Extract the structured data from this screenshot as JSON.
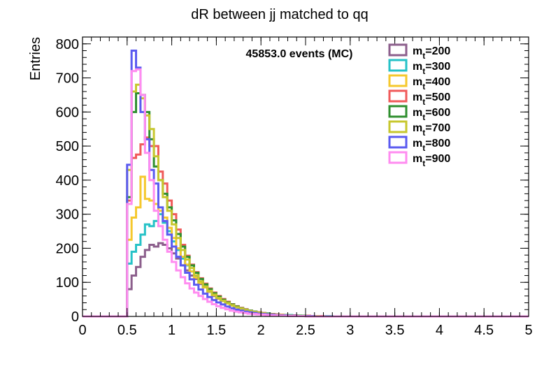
{
  "chart_data": {
    "type": "line",
    "title": "dR between jj matched to qq",
    "annotation": "45853.0 events (MC)",
    "xlabel": "",
    "ylabel": "Entries",
    "xlim": [
      0,
      5
    ],
    "ylim": [
      0,
      820
    ],
    "x_ticks": [
      "0",
      "0.5",
      "1",
      "1.5",
      "2",
      "2.5",
      "3",
      "3.5",
      "4",
      "4.5",
      "5"
    ],
    "y_ticks": [
      "0",
      "100",
      "200",
      "300",
      "400",
      "500",
      "600",
      "700",
      "800"
    ],
    "bin_width": 0.05,
    "x": [
      0.5,
      0.55,
      0.6,
      0.65,
      0.7,
      0.75,
      0.8,
      0.85,
      0.9,
      0.95,
      1.0,
      1.05,
      1.1,
      1.15,
      1.2,
      1.25,
      1.3,
      1.35,
      1.4,
      1.45,
      1.5,
      1.55,
      1.6,
      1.65,
      1.7,
      1.75,
      1.8,
      1.85,
      1.9,
      1.95,
      2.0,
      2.05,
      2.1,
      2.15,
      2.2,
      2.25,
      2.3,
      2.35,
      2.4,
      2.45,
      2.5,
      2.55,
      2.6,
      2.65,
      2.7,
      2.75,
      2.8,
      2.85,
      2.9,
      2.95
    ],
    "legend_position": "top-right",
    "series": [
      {
        "name": "200",
        "color": "#8c5f8c",
        "values": [
          80,
          120,
          145,
          175,
          195,
          210,
          205,
          215,
          210,
          200,
          185,
          170,
          150,
          135,
          120,
          110,
          95,
          85,
          72,
          60,
          52,
          45,
          38,
          32,
          27,
          23,
          19,
          16,
          13,
          11,
          9,
          8,
          7,
          6,
          5,
          4,
          3,
          3,
          2,
          2,
          2,
          1,
          1,
          1,
          1,
          0,
          0,
          0,
          0,
          0
        ]
      },
      {
        "name": "300",
        "color": "#26c2c7",
        "values": [
          155,
          190,
          210,
          240,
          270,
          265,
          280,
          300,
          275,
          250,
          220,
          195,
          170,
          150,
          132,
          115,
          100,
          87,
          75,
          64,
          55,
          47,
          40,
          34,
          29,
          24,
          20,
          17,
          14,
          12,
          10,
          9,
          7,
          6,
          5,
          4,
          4,
          3,
          3,
          2,
          2,
          1,
          1,
          1,
          1,
          1,
          0,
          0,
          0,
          0
        ]
      },
      {
        "name": "400",
        "color": "#f5c82d",
        "values": [
          225,
          290,
          320,
          410,
          345,
          340,
          330,
          310,
          290,
          260,
          230,
          200,
          175,
          152,
          132,
          114,
          98,
          85,
          73,
          62,
          53,
          45,
          38,
          32,
          27,
          23,
          19,
          16,
          13,
          11,
          9,
          8,
          7,
          6,
          5,
          4,
          3,
          3,
          2,
          2,
          2,
          1,
          1,
          1,
          0,
          0,
          0,
          0,
          0,
          0
        ]
      },
      {
        "name": "500",
        "color": "#f05a5a",
        "values": [
          340,
          465,
          475,
          505,
          525,
          500,
          500,
          425,
          390,
          340,
          300,
          255,
          210,
          178,
          152,
          130,
          112,
          96,
          82,
          70,
          60,
          51,
          43,
          36,
          30,
          25,
          21,
          17,
          14,
          12,
          10,
          8,
          7,
          6,
          5,
          4,
          3,
          3,
          2,
          2,
          2,
          1,
          1,
          1,
          0,
          0,
          0,
          0,
          0,
          0
        ]
      },
      {
        "name": "600",
        "color": "#2f8f2f",
        "values": [
          350,
          600,
          655,
          650,
          600,
          520,
          440,
          400,
          360,
          320,
          282,
          242,
          205,
          175,
          150,
          128,
          110,
          94,
          80,
          68,
          58,
          49,
          41,
          35,
          29,
          24,
          20,
          17,
          14,
          11,
          9,
          8,
          6,
          5,
          4,
          4,
          3,
          2,
          2,
          2,
          1,
          1,
          1,
          0,
          0,
          0,
          0,
          0,
          0,
          0
        ]
      },
      {
        "name": "700",
        "color": "#c7c72e",
        "values": [
          430,
          660,
          680,
          640,
          590,
          550,
          470,
          400,
          350,
          310,
          270,
          230,
          195,
          167,
          142,
          121,
          103,
          88,
          75,
          64,
          54,
          46,
          39,
          33,
          27,
          23,
          19,
          16,
          13,
          11,
          9,
          7,
          6,
          5,
          4,
          3,
          3,
          2,
          2,
          1,
          1,
          1,
          1,
          0,
          0,
          0,
          0,
          0,
          0,
          0
        ]
      },
      {
        "name": "800",
        "color": "#5a5af0",
        "values": [
          445,
          780,
          730,
          600,
          520,
          430,
          390,
          320,
          280,
          240,
          205,
          175,
          150,
          128,
          109,
          93,
          79,
          67,
          57,
          48,
          41,
          35,
          29,
          24,
          20,
          17,
          14,
          12,
          10,
          8,
          7,
          6,
          5,
          4,
          3,
          3,
          2,
          2,
          1,
          1,
          1,
          1,
          0,
          0,
          0,
          0,
          0,
          0,
          0,
          0
        ]
      },
      {
        "name": "900",
        "color": "#ff8cf0",
        "values": [
          330,
          720,
          725,
          650,
          480,
          400,
          310,
          265,
          225,
          190,
          160,
          135,
          115,
          97,
          82,
          70,
          60,
          51,
          43,
          36,
          30,
          25,
          21,
          17,
          14,
          12,
          10,
          8,
          7,
          6,
          5,
          4,
          3,
          3,
          2,
          2,
          1,
          1,
          1,
          1,
          0,
          0,
          0,
          0,
          0,
          0,
          0,
          0,
          0,
          0
        ]
      }
    ]
  },
  "legend_prefix": "m",
  "legend_subscript": "t",
  "legend_infix": "="
}
